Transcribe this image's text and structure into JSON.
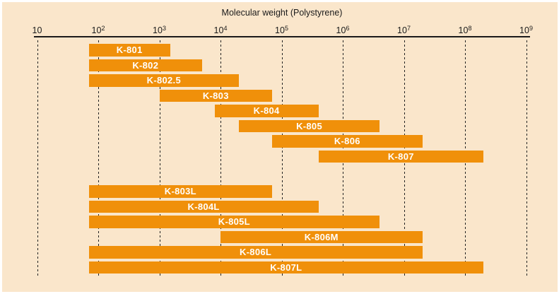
{
  "chart_data": {
    "type": "bar",
    "orientation": "horizontal-range",
    "title": "Molecular weight (Polystyrene)",
    "x_scale": "log",
    "xlim": [
      10,
      1000000000
    ],
    "grid": "vertical-dashed",
    "legend": "none",
    "x_ticks": [
      {
        "base": "10",
        "sup": "",
        "value": 10
      },
      {
        "base": "10",
        "sup": "2",
        "value": 100
      },
      {
        "base": "10",
        "sup": "3",
        "value": 1000
      },
      {
        "base": "10",
        "sup": "4",
        "value": 10000
      },
      {
        "base": "10",
        "sup": "5",
        "value": 100000
      },
      {
        "base": "10",
        "sup": "6",
        "value": 1000000
      },
      {
        "base": "10",
        "sup": "7",
        "value": 10000000
      },
      {
        "base": "10",
        "sup": "8",
        "value": 100000000
      },
      {
        "base": "10",
        "sup": "9",
        "value": 1000000000
      }
    ],
    "series": [
      {
        "label": "K-801",
        "group": 1,
        "mw_min": 70,
        "mw_max": 1500
      },
      {
        "label": "K-802",
        "group": 1,
        "mw_min": 70,
        "mw_max": 5000
      },
      {
        "label": "K-802.5",
        "group": 1,
        "mw_min": 70,
        "mw_max": 20000
      },
      {
        "label": "K-803",
        "group": 1,
        "mw_min": 1000,
        "mw_max": 70000
      },
      {
        "label": "K-804",
        "group": 1,
        "mw_min": 8000,
        "mw_max": 400000
      },
      {
        "label": "K-805",
        "group": 1,
        "mw_min": 20000,
        "mw_max": 4000000
      },
      {
        "label": "K-806",
        "group": 1,
        "mw_min": 70000,
        "mw_max": 20000000
      },
      {
        "label": "K-807",
        "group": 1,
        "mw_min": 400000,
        "mw_max": 200000000
      },
      {
        "label": "K-803L",
        "group": 2,
        "mw_min": 70,
        "mw_max": 70000
      },
      {
        "label": "K-804L",
        "group": 2,
        "mw_min": 70,
        "mw_max": 400000
      },
      {
        "label": "K-805L",
        "group": 2,
        "mw_min": 70,
        "mw_max": 4000000
      },
      {
        "label": "K-806M",
        "group": 2,
        "mw_min": 10000,
        "mw_max": 20000000
      },
      {
        "label": "K-806L",
        "group": 2,
        "mw_min": 70,
        "mw_max": 20000000
      },
      {
        "label": "K-807L",
        "group": 2,
        "mw_min": 70,
        "mw_max": 200000000
      }
    ]
  },
  "colors": {
    "background": "#FAE6CB",
    "bar": "#F0900A",
    "bar_label": "#FFFFFF",
    "axis_text": "#1A1A1A",
    "axis_line": "#1A1A1A",
    "grid_line": "#222222",
    "page_border": "#FFFFFF"
  }
}
